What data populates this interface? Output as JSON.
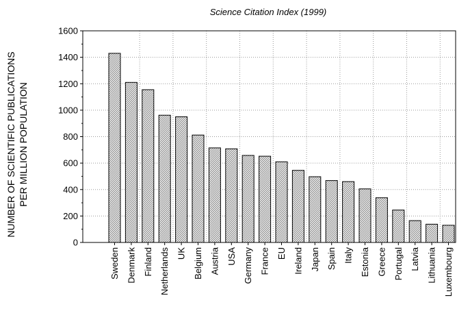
{
  "chart_data": {
    "type": "bar",
    "title": "Science Citation Index (1999)",
    "ylabel_lines": [
      "NUMBER OF SCIENTIFIC PUBLICATIONS",
      "PER MILLION POPULATION"
    ],
    "xlabel": "",
    "ylim": [
      0,
      1600
    ],
    "yticks": [
      0,
      200,
      400,
      600,
      800,
      1000,
      1200,
      1400,
      1600
    ],
    "grid": true,
    "categories": [
      "Sweden",
      "Denmark",
      "Finland",
      "Netherlands",
      "UK",
      "Belgium",
      "Austria",
      "USA",
      "Germany",
      "France",
      "EU",
      "Ireland",
      "Japan",
      "Spain",
      "Italy",
      "Estonia",
      "Greece",
      "Portugal",
      "Latvia",
      "Lithuania",
      "Luxembourg"
    ],
    "values": [
      1430,
      1210,
      1155,
      962,
      950,
      812,
      715,
      708,
      658,
      652,
      610,
      545,
      497,
      468,
      460,
      405,
      338,
      245,
      165,
      138,
      130
    ],
    "bar_fill": "hatched"
  }
}
